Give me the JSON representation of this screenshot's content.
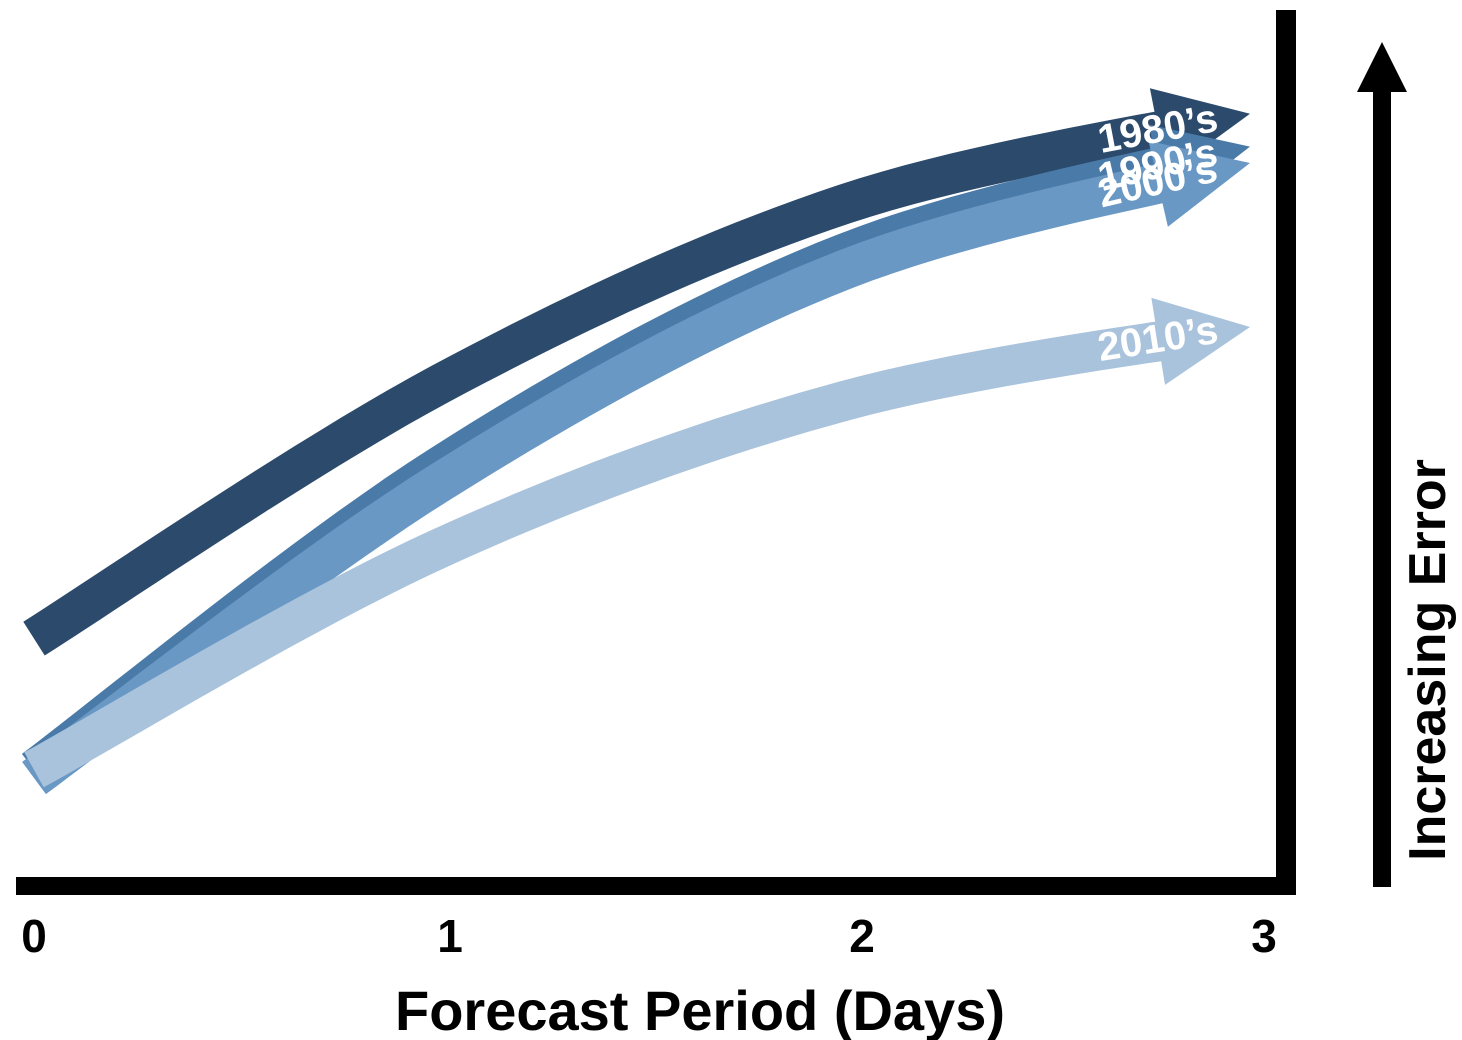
{
  "chart_data": {
    "type": "line",
    "title": "",
    "xlabel": "Forecast Period (Days)",
    "ylabel": "Increasing Error",
    "x_ticks": [
      "0",
      "1",
      "2",
      "3"
    ],
    "xlim": [
      0,
      3
    ],
    "ylim": [
      0,
      100
    ],
    "y_tick_labels": "none",
    "grid": false,
    "legend": "inline labels near arrow heads",
    "series": [
      {
        "name": "1980’s",
        "x": [
          0,
          1,
          2,
          3
        ],
        "y": [
          27,
          58,
          80,
          91
        ],
        "color": "#2c4a6b"
      },
      {
        "name": "1990’s",
        "x": [
          0,
          1,
          2,
          3
        ],
        "y": [
          11,
          48,
          74,
          87
        ],
        "color": "#4a7aa8"
      },
      {
        "name": "2000’s",
        "x": [
          0,
          1,
          2,
          3
        ],
        "y": [
          10,
          46,
          72,
          85
        ],
        "color": "#6a98c4"
      },
      {
        "name": "2010’s",
        "x": [
          0,
          1,
          2,
          3
        ],
        "y": [
          11,
          38,
          56,
          65
        ],
        "color": "#a9c3dc"
      }
    ]
  }
}
